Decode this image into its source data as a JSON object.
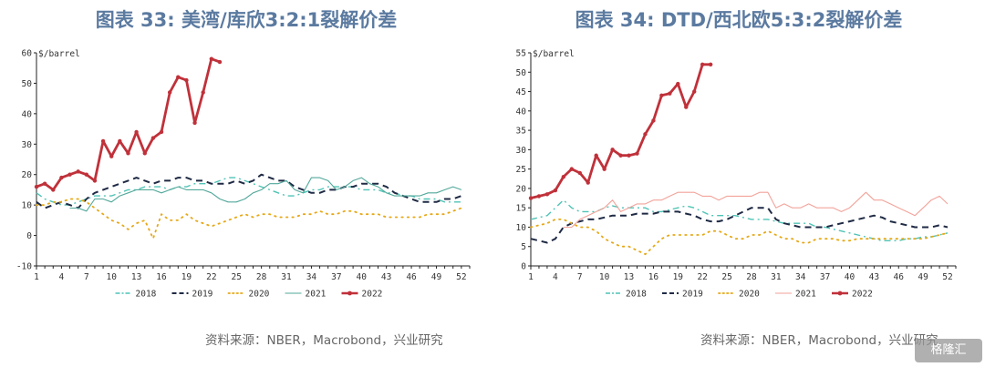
{
  "chart_data": [
    {
      "type": "line",
      "title": "图表 33: 美湾/库欣3:2:1裂解价差",
      "ylabel": "$/barrel",
      "xlim": [
        1,
        53
      ],
      "ylim": [
        -10,
        60
      ],
      "yticks": [
        -10,
        0,
        10,
        20,
        30,
        40,
        50,
        60
      ],
      "xticks": [
        1,
        4,
        7,
        10,
        13,
        16,
        19,
        22,
        25,
        28,
        31,
        34,
        37,
        40,
        43,
        46,
        49,
        52
      ],
      "legend_position": "bottom",
      "series": [
        {
          "name": "2018",
          "color": "#4fc3b5",
          "style": "dashdot",
          "width": 1.4,
          "values": [
            14,
            12,
            11,
            10,
            10,
            11,
            12,
            13,
            13,
            13,
            14,
            15,
            15,
            16,
            16,
            16,
            15,
            16,
            16,
            17,
            17,
            17,
            18,
            19,
            19,
            18,
            17,
            16,
            15,
            14,
            13,
            13,
            14,
            15,
            15,
            16,
            16,
            16,
            16,
            15,
            15,
            15,
            14,
            14,
            13,
            13,
            12,
            12,
            12,
            11,
            11,
            11
          ]
        },
        {
          "name": "2019",
          "color": "#1f2a44",
          "style": "dash",
          "width": 2,
          "values": [
            11,
            9,
            10,
            11,
            10,
            9,
            12,
            14,
            15,
            16,
            17,
            18,
            19,
            18,
            17,
            18,
            18,
            19,
            19,
            18,
            18,
            17,
            17,
            17,
            18,
            17,
            18,
            20,
            19,
            18,
            18,
            16,
            15,
            14,
            14,
            15,
            15,
            16,
            16,
            17,
            17,
            17,
            16,
            14,
            13,
            12,
            11,
            11,
            11,
            12,
            12,
            13
          ]
        },
        {
          "name": "2020",
          "color": "#e6a817",
          "style": "dot",
          "width": 1.8,
          "values": [
            10,
            10,
            11,
            11,
            12,
            12,
            11,
            9,
            7,
            5,
            4,
            2,
            4,
            5,
            -1,
            7,
            5,
            5,
            7,
            5,
            4,
            3,
            4,
            5,
            6,
            7,
            6,
            7,
            7,
            6,
            6,
            6,
            7,
            7,
            8,
            7,
            7,
            8,
            8,
            7,
            7,
            7,
            6,
            6,
            6,
            6,
            6,
            7,
            7,
            7,
            8,
            9
          ]
        },
        {
          "name": "2021",
          "color": "#52a89a",
          "style": "solid",
          "width": 1.1,
          "values": [
            null,
            null,
            null,
            null,
            9,
            9,
            8,
            12,
            12,
            11,
            13,
            14,
            15,
            15,
            15,
            14,
            15,
            16,
            15,
            15,
            15,
            14,
            12,
            11,
            11,
            12,
            14,
            15,
            17,
            17,
            18,
            15,
            14,
            19,
            19,
            18,
            15,
            16,
            18,
            19,
            17,
            16,
            14,
            13,
            13,
            13,
            13,
            14,
            14,
            15,
            16,
            15
          ]
        },
        {
          "name": "2022",
          "color": "#c0313a",
          "style": "solid-marker",
          "width": 2.8,
          "values": [
            16,
            17,
            15,
            19,
            20,
            21,
            20,
            18,
            31,
            26,
            31,
            27,
            34,
            27,
            32,
            34,
            47,
            52,
            51,
            37,
            47,
            58,
            57,
            null,
            null,
            null,
            null,
            null,
            null,
            null,
            null,
            null,
            null,
            null,
            null,
            null,
            null,
            null,
            null,
            null,
            null,
            null,
            null,
            null,
            null,
            null,
            null,
            null,
            null,
            null,
            null,
            null
          ]
        }
      ]
    },
    {
      "type": "line",
      "title": "图表 34: DTD/西北欧5:3:2裂解价差",
      "ylabel": "$/barrel",
      "xlim": [
        1,
        53
      ],
      "ylim": [
        0,
        55
      ],
      "yticks": [
        0,
        5,
        10,
        15,
        20,
        25,
        30,
        35,
        40,
        45,
        50,
        55
      ],
      "xticks": [
        1,
        4,
        7,
        10,
        13,
        16,
        19,
        22,
        25,
        28,
        31,
        34,
        37,
        40,
        43,
        46,
        49,
        52
      ],
      "legend_position": "bottom",
      "series": [
        {
          "name": "2018",
          "color": "#4fc3b5",
          "style": "dashdot",
          "width": 1.4,
          "values": [
            12,
            12.5,
            13,
            15,
            17,
            15,
            14,
            14,
            14,
            15,
            15.5,
            15,
            15,
            15,
            15,
            14,
            14,
            14.5,
            15,
            15.5,
            15,
            14,
            13,
            13,
            13,
            13,
            12.5,
            12,
            12,
            12,
            11.5,
            11,
            11,
            11,
            11,
            10,
            10,
            9.5,
            9,
            8.5,
            8,
            7.5,
            7,
            6.5,
            6.5,
            6.5,
            7,
            7,
            7.5,
            7.5,
            8,
            8.5
          ]
        },
        {
          "name": "2019",
          "color": "#1f2a44",
          "style": "dash",
          "width": 2,
          "values": [
            7,
            6.5,
            6,
            7,
            10,
            11,
            11.5,
            12,
            12,
            12.5,
            13,
            13,
            13,
            13.5,
            13.5,
            13.5,
            14,
            14,
            14,
            13.5,
            13,
            12,
            11.5,
            11.5,
            12,
            13,
            14,
            15,
            15,
            15,
            12,
            11,
            10.5,
            10,
            10,
            10,
            10,
            10.5,
            11,
            11.5,
            12,
            12.5,
            13,
            12.5,
            11.5,
            11,
            10.5,
            10,
            10,
            10,
            10.5,
            10
          ]
        },
        {
          "name": "2020",
          "color": "#e6a817",
          "style": "dot",
          "width": 1.8,
          "values": [
            10,
            10.5,
            11,
            12,
            12,
            11,
            10,
            10,
            9,
            7,
            6,
            5,
            5,
            4,
            3,
            5,
            7,
            8,
            8,
            8,
            8,
            8,
            9,
            9,
            8,
            7,
            7,
            8,
            8,
            9,
            8,
            7,
            7,
            6,
            6,
            7,
            7,
            7,
            6.5,
            6.5,
            7,
            7,
            7,
            7,
            7,
            7,
            7,
            7,
            7,
            7.5,
            8,
            8.5
          ]
        },
        {
          "name": "2021",
          "color": "#f2a39a",
          "style": "solid",
          "width": 1.1,
          "values": [
            null,
            null,
            null,
            null,
            10,
            10,
            12,
            13,
            14,
            15,
            17,
            14,
            15,
            16,
            16,
            17,
            17,
            18,
            19,
            19,
            19,
            18,
            18,
            17,
            18,
            18,
            18,
            18,
            19,
            19,
            15,
            16,
            15,
            15,
            16,
            15,
            15,
            15,
            14,
            15,
            17,
            19,
            17,
            17,
            16,
            15,
            14,
            13,
            15,
            17,
            18,
            16
          ]
        },
        {
          "name": "2022",
          "color": "#c0313a",
          "style": "solid-marker",
          "width": 2.8,
          "values": [
            17.5,
            18,
            18.5,
            19.5,
            23,
            25,
            24,
            21.5,
            28.5,
            25,
            30,
            28.5,
            28.5,
            29,
            34,
            37.5,
            44,
            44.5,
            47,
            41,
            45,
            52,
            52,
            null,
            null,
            null,
            null,
            null,
            null,
            null,
            null,
            null,
            null,
            null,
            null,
            null,
            null,
            null,
            null,
            null,
            null,
            null,
            null,
            null,
            null,
            null,
            null,
            null,
            null,
            null,
            null,
            null
          ]
        }
      ]
    }
  ],
  "charts": {
    "left": {
      "title": "图表 33: 美湾/库欣3:2:1裂解价差",
      "unit": "$/barrel"
    },
    "right": {
      "title": "图表 34: DTD/西北欧5:3:2裂解价差",
      "unit": "$/barrel"
    }
  },
  "source_text": "资料来源：NBER，Macrobond，兴业研究",
  "watermark_text": "格隆汇"
}
